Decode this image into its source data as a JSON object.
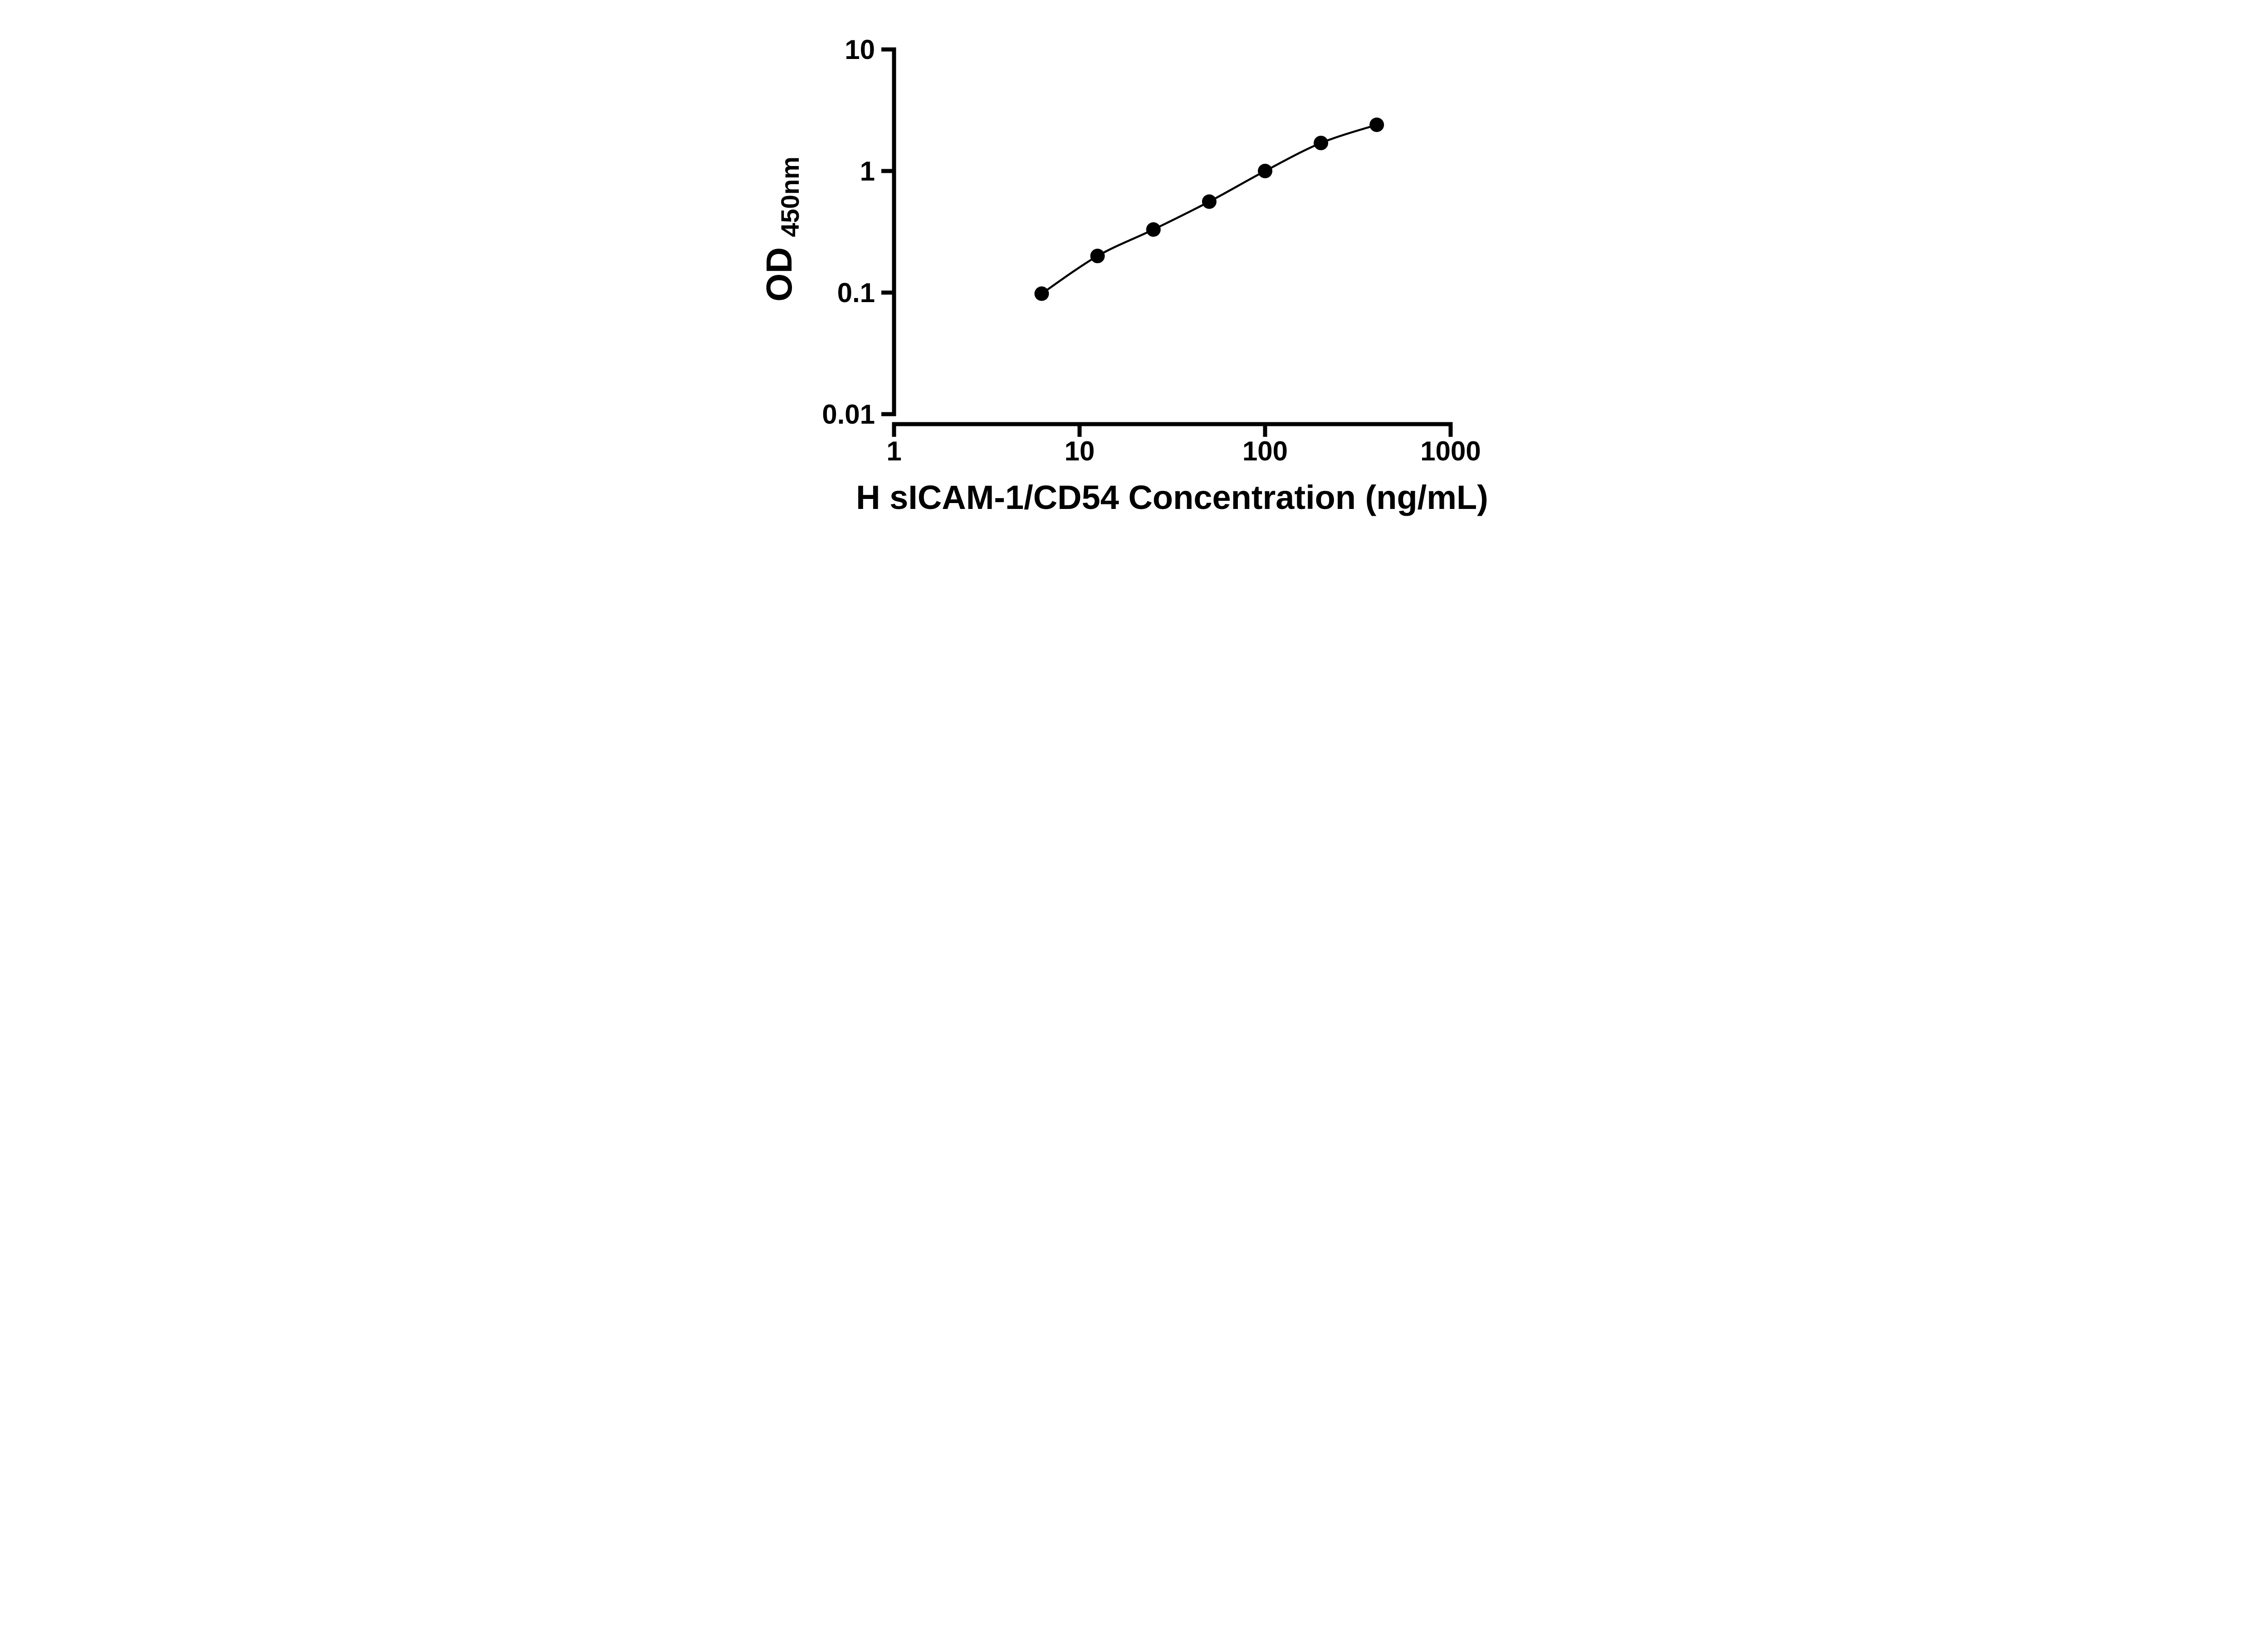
{
  "figure": {
    "background": "#ffffff"
  },
  "chart_data": {
    "type": "scatter",
    "title": "",
    "x": [
      6.25,
      12.5,
      25,
      50,
      100,
      200,
      400
    ],
    "y": [
      0.098,
      0.2,
      0.33,
      0.56,
      1.0,
      1.7,
      2.4
    ],
    "curve": "smooth fit line through data points",
    "xlabel": "H sICAM-1/CD54 Concentration (ng/mL)",
    "ylabel_main": "OD",
    "ylabel_sub": "450nm",
    "x_scale": "log10",
    "y_scale": "log10",
    "xlim": [
      1,
      1000
    ],
    "ylim": [
      0.01,
      10
    ],
    "x_tick_values": [
      1,
      10,
      100,
      1000
    ],
    "x_tick_labels": [
      "1",
      "10",
      "100",
      "1000"
    ],
    "y_tick_values": [
      0.01,
      0.1,
      1,
      10
    ],
    "y_tick_labels": [
      "0.01",
      "0.1",
      "1",
      "10"
    ],
    "grid": false,
    "legend_position": "none",
    "axis_color": "#000000",
    "marker_color": "#000000",
    "line_color": "#000000"
  }
}
